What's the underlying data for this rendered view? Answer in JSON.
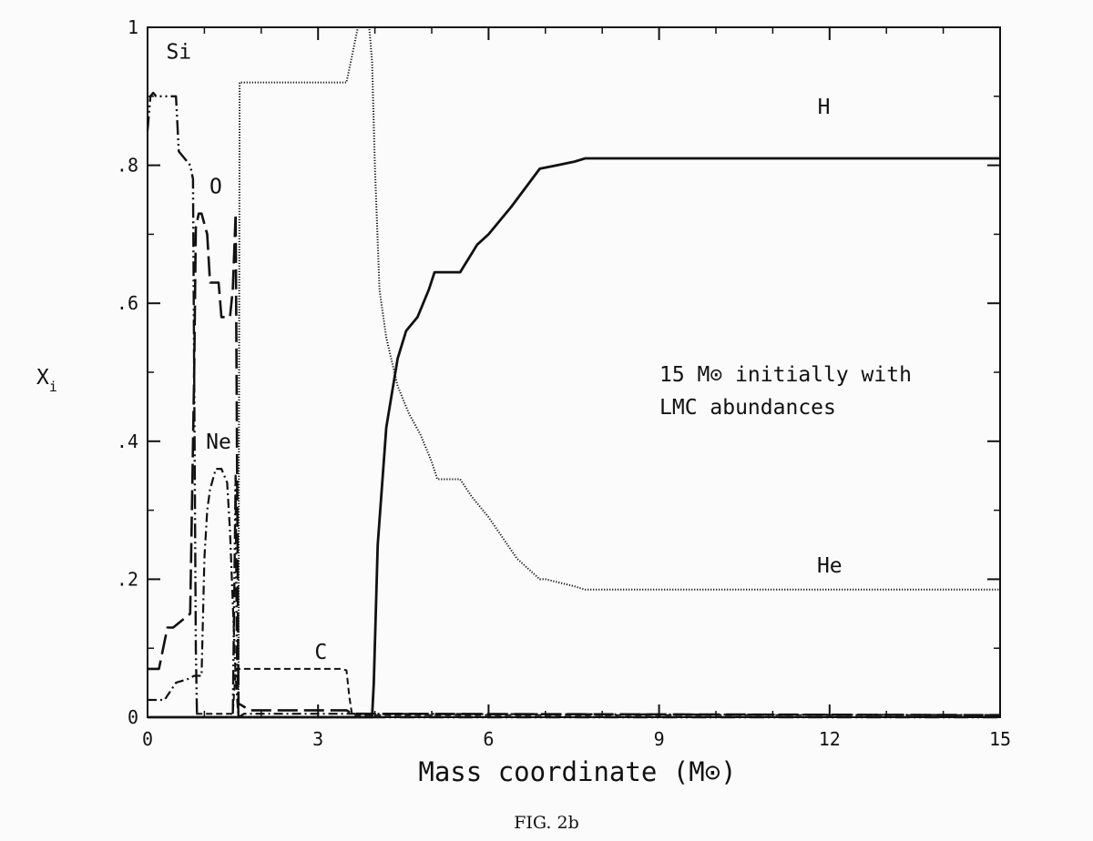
{
  "chart_data": {
    "type": "line",
    "xlabel": "Mass coordinate (M⊙)",
    "ylabel": "X",
    "ylabel_sub": "i",
    "xlim": [
      0,
      15
    ],
    "ylim": [
      0,
      1
    ],
    "x_ticks": [
      0,
      3,
      6,
      9,
      12,
      15
    ],
    "x_tick_labels": [
      "0",
      "3",
      "6",
      "9",
      "12",
      "15"
    ],
    "y_ticks": [
      0,
      0.2,
      0.4,
      0.6,
      0.8,
      1
    ],
    "y_tick_labels": [
      "0",
      ".2",
      ".4",
      ".6",
      ".8",
      "1"
    ],
    "grid": false,
    "annotation_lines": [
      "15 M⊙ initially with",
      "LMC abundances"
    ],
    "caption": "FIG. 2b",
    "series": [
      {
        "name": "H",
        "label_at": [
          11.9,
          0.885
        ],
        "style": "solid",
        "x": [
          0,
          3.95,
          3.98,
          4.05,
          4.2,
          4.4,
          4.55,
          4.75,
          4.95,
          5.05,
          5.5,
          5.8,
          6.0,
          6.4,
          6.9,
          7.2,
          7.5,
          7.7,
          10,
          15
        ],
        "y": [
          0,
          0,
          0.05,
          0.25,
          0.42,
          0.52,
          0.56,
          0.58,
          0.62,
          0.645,
          0.645,
          0.685,
          0.7,
          0.74,
          0.795,
          0.8,
          0.805,
          0.81,
          0.81,
          0.81
        ]
      },
      {
        "name": "He",
        "label_at": [
          12.0,
          0.22
        ],
        "style": "dotted",
        "x": [
          1.6,
          1.62,
          3.5,
          3.65,
          3.7,
          3.9,
          3.95,
          4.0,
          4.08,
          4.2,
          4.4,
          4.6,
          4.8,
          5.0,
          5.1,
          5.5,
          5.7,
          6.0,
          6.5,
          6.9,
          7.0,
          7.5,
          7.7,
          10,
          15
        ],
        "y": [
          0.0,
          0.92,
          0.92,
          0.98,
          1.0,
          1.0,
          0.95,
          0.8,
          0.62,
          0.55,
          0.48,
          0.44,
          0.41,
          0.37,
          0.345,
          0.345,
          0.32,
          0.29,
          0.23,
          0.2,
          0.2,
          0.19,
          0.185,
          0.185,
          0.185
        ]
      },
      {
        "name": "C",
        "label_at": [
          3.05,
          0.095
        ],
        "style": "short-dash",
        "x": [
          0,
          0.8,
          0.85,
          1.5,
          1.55,
          1.6,
          3.4,
          3.5,
          3.55,
          3.6,
          15
        ],
        "y": [
          0,
          0,
          0.005,
          0.005,
          0.07,
          0.07,
          0.07,
          0.068,
          0.03,
          0.003,
          0.003
        ]
      },
      {
        "name": "O",
        "label_at": [
          1.2,
          0.77
        ],
        "style": "long-dash",
        "x": [
          0,
          0.2,
          0.35,
          0.45,
          0.75,
          0.82,
          0.85,
          0.9,
          0.95,
          1.05,
          1.1,
          1.25,
          1.3,
          1.45,
          1.5,
          1.55,
          1.6,
          1.8,
          3.5,
          3.6,
          15
        ],
        "y": [
          0.07,
          0.07,
          0.13,
          0.13,
          0.15,
          0.5,
          0.71,
          0.73,
          0.73,
          0.7,
          0.63,
          0.63,
          0.58,
          0.58,
          0.62,
          0.73,
          0.02,
          0.01,
          0.01,
          0.005,
          0.003
        ]
      },
      {
        "name": "Ne",
        "label_at": [
          1.25,
          0.4
        ],
        "style": "dash-dot",
        "x": [
          0,
          0.3,
          0.5,
          0.7,
          0.82,
          0.88,
          0.95,
          1.0,
          1.05,
          1.1,
          1.2,
          1.3,
          1.4,
          1.45,
          1.55,
          1.6,
          1.7,
          3.6,
          15
        ],
        "y": [
          0.025,
          0.025,
          0.05,
          0.055,
          0.06,
          0.06,
          0.06,
          0.23,
          0.3,
          0.33,
          0.36,
          0.36,
          0.34,
          0.27,
          0.06,
          0.0,
          0.005,
          0.005,
          0.003
        ]
      },
      {
        "name": "Si",
        "label_at": [
          0.55,
          0.965
        ],
        "style": "dash-double-dot",
        "x": [
          0,
          0.05,
          0.1,
          0.15,
          0.2,
          0.5,
          0.55,
          0.75,
          0.8,
          0.85,
          0.87,
          0.95,
          1.0,
          1.45,
          1.5,
          1.55,
          1.57,
          1.6,
          15
        ],
        "y": [
          0.85,
          0.9,
          0.905,
          0.9,
          0.9,
          0.9,
          0.82,
          0.8,
          0.78,
          0.1,
          0.0,
          0.0,
          0.0,
          0.0,
          0.0,
          0.35,
          0.1,
          0.0,
          0.0
        ]
      }
    ]
  }
}
